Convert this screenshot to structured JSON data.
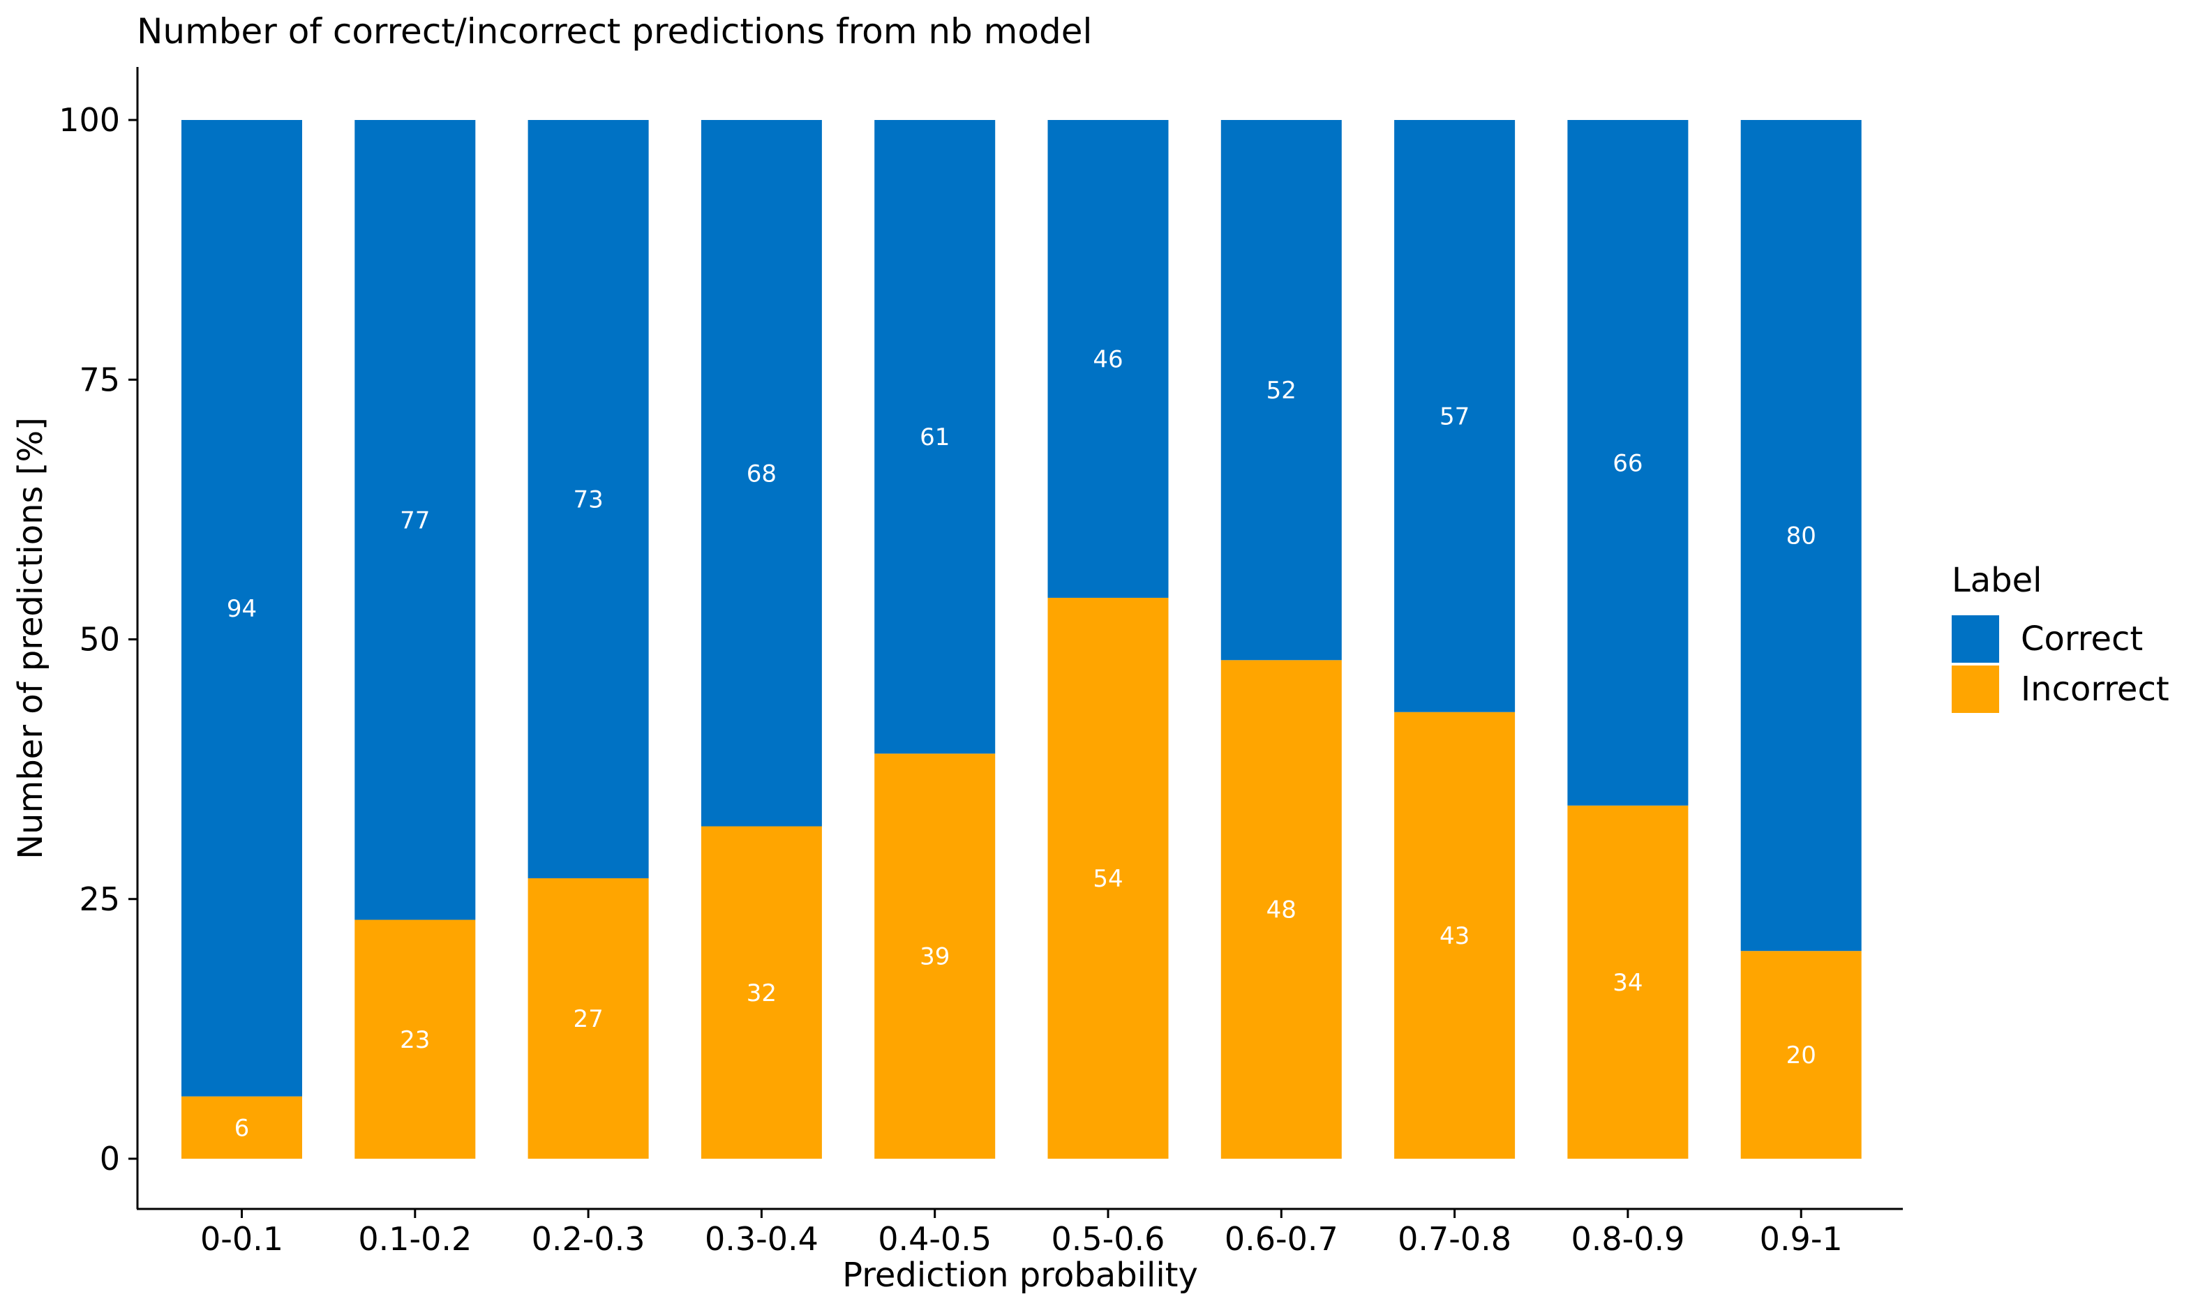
{
  "chart_data": {
    "type": "bar",
    "stacked": true,
    "title": "Number of correct/incorrect predictions from nb model",
    "xlabel": "Prediction probability",
    "ylabel": "Number of predictions [%]",
    "ylim": [
      0,
      100
    ],
    "yticks": [
      0,
      25,
      50,
      75,
      100
    ],
    "categories": [
      "0-0.1",
      "0.1-0.2",
      "0.2-0.3",
      "0.3-0.4",
      "0.4-0.5",
      "0.5-0.6",
      "0.6-0.7",
      "0.7-0.8",
      "0.8-0.9",
      "0.9-1"
    ],
    "series": [
      {
        "name": "Incorrect",
        "color": "#FFA500",
        "values": [
          6,
          23,
          27,
          32,
          39,
          54,
          48,
          43,
          34,
          20
        ]
      },
      {
        "name": "Correct",
        "color": "#0072C4",
        "values": [
          94,
          77,
          73,
          68,
          61,
          46,
          52,
          57,
          66,
          80
        ]
      }
    ],
    "legend": {
      "title": "Label",
      "placement": "right",
      "entries": [
        {
          "name": "Correct",
          "color": "#0072C4"
        },
        {
          "name": "Incorrect",
          "color": "#FFA500"
        }
      ]
    },
    "grid": false
  }
}
